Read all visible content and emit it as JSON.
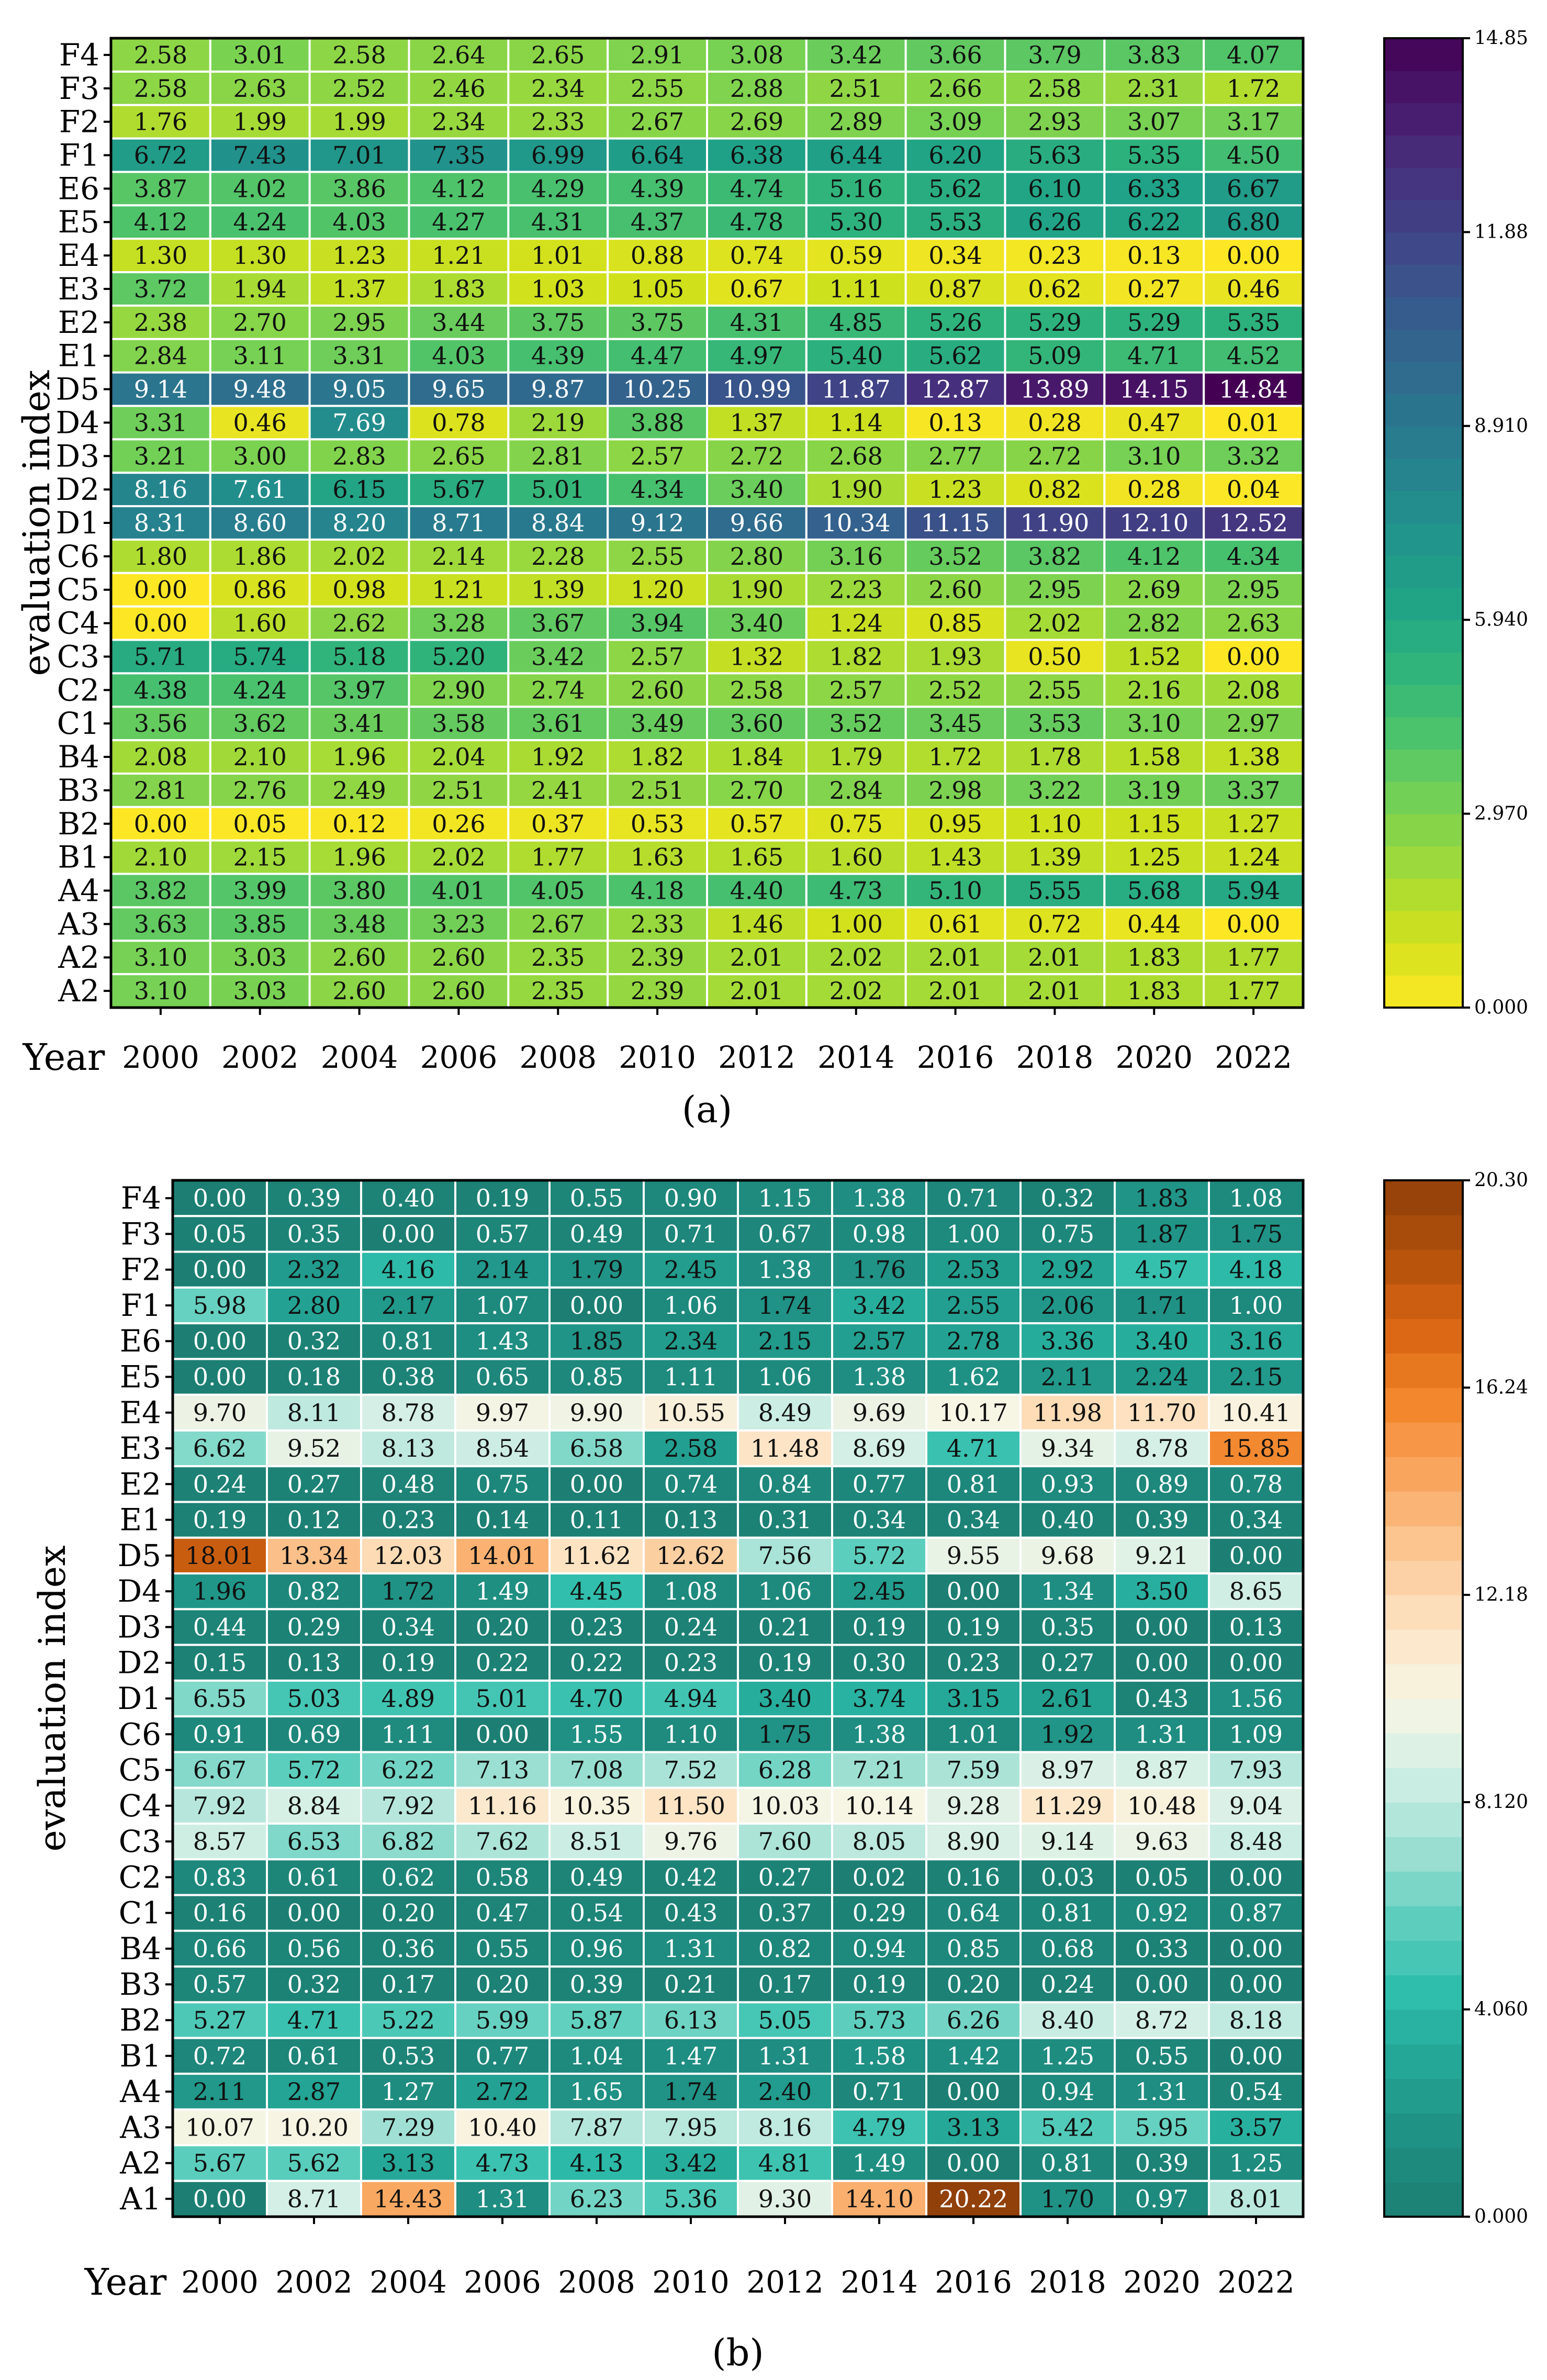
{
  "chart_data": [
    {
      "type": "heatmap",
      "panel_label": "(a)",
      "xlabel": "Year",
      "ylabel": "evaluation index",
      "columns": [
        "2000",
        "2002",
        "2004",
        "2006",
        "2008",
        "2010",
        "2012",
        "2014",
        "2016",
        "2018",
        "2020",
        "2022"
      ],
      "rows": [
        "F4",
        "F3",
        "F2",
        "F1",
        "E6",
        "E5",
        "E4",
        "E3",
        "E2",
        "E1",
        "D5",
        "D4",
        "D3",
        "D2",
        "D1",
        "C6",
        "C5",
        "C4",
        "C3",
        "C2",
        "C1",
        "B4",
        "B3",
        "B2",
        "B1",
        "A4",
        "A3",
        "A2",
        "A2"
      ],
      "values": [
        [
          2.58,
          3.01,
          2.58,
          2.64,
          2.65,
          2.91,
          3.08,
          3.42,
          3.66,
          3.79,
          3.83,
          4.07
        ],
        [
          2.58,
          2.63,
          2.52,
          2.46,
          2.34,
          2.55,
          2.88,
          2.51,
          2.66,
          2.58,
          2.31,
          1.72
        ],
        [
          1.76,
          1.99,
          1.99,
          2.34,
          2.33,
          2.67,
          2.69,
          2.89,
          3.09,
          2.93,
          3.07,
          3.17
        ],
        [
          6.72,
          7.43,
          7.01,
          7.35,
          6.99,
          6.64,
          6.38,
          6.44,
          6.2,
          5.63,
          5.35,
          4.5
        ],
        [
          3.87,
          4.02,
          3.86,
          4.12,
          4.29,
          4.39,
          4.74,
          5.16,
          5.62,
          6.1,
          6.33,
          6.67
        ],
        [
          4.12,
          4.24,
          4.03,
          4.27,
          4.31,
          4.37,
          4.78,
          5.3,
          5.53,
          6.26,
          6.22,
          6.8
        ],
        [
          1.3,
          1.3,
          1.23,
          1.21,
          1.01,
          0.88,
          0.74,
          0.59,
          0.34,
          0.23,
          0.13,
          0.0
        ],
        [
          3.72,
          1.94,
          1.37,
          1.83,
          1.03,
          1.05,
          0.67,
          1.11,
          0.87,
          0.62,
          0.27,
          0.46
        ],
        [
          2.38,
          2.7,
          2.95,
          3.44,
          3.75,
          3.75,
          4.31,
          4.85,
          5.26,
          5.29,
          5.29,
          5.35
        ],
        [
          2.84,
          3.11,
          3.31,
          4.03,
          4.39,
          4.47,
          4.97,
          5.4,
          5.62,
          5.09,
          4.71,
          4.52
        ],
        [
          9.14,
          9.48,
          9.05,
          9.65,
          9.87,
          10.25,
          10.99,
          11.87,
          12.87,
          13.89,
          14.15,
          14.84
        ],
        [
          3.31,
          0.46,
          7.69,
          0.78,
          2.19,
          3.88,
          1.37,
          1.14,
          0.13,
          0.28,
          0.47,
          0.01
        ],
        [
          3.21,
          3.0,
          2.83,
          2.65,
          2.81,
          2.57,
          2.72,
          2.68,
          2.77,
          2.72,
          3.1,
          3.32
        ],
        [
          8.16,
          7.61,
          6.15,
          5.67,
          5.01,
          4.34,
          3.4,
          1.9,
          1.23,
          0.82,
          0.28,
          0.04
        ],
        [
          8.31,
          8.6,
          8.2,
          8.71,
          8.84,
          9.12,
          9.66,
          10.34,
          11.15,
          11.9,
          12.1,
          12.52
        ],
        [
          1.8,
          1.86,
          2.02,
          2.14,
          2.28,
          2.55,
          2.8,
          3.16,
          3.52,
          3.82,
          4.12,
          4.34
        ],
        [
          0.0,
          0.86,
          0.98,
          1.21,
          1.39,
          1.2,
          1.9,
          2.23,
          2.6,
          2.95,
          2.69,
          2.95
        ],
        [
          0.0,
          1.6,
          2.62,
          3.28,
          3.67,
          3.94,
          3.4,
          1.24,
          0.85,
          2.02,
          2.82,
          2.63
        ],
        [
          5.71,
          5.74,
          5.18,
          5.2,
          3.42,
          2.57,
          1.32,
          1.82,
          1.93,
          0.5,
          1.52,
          0.0
        ],
        [
          4.38,
          4.24,
          3.97,
          2.9,
          2.74,
          2.6,
          2.58,
          2.57,
          2.52,
          2.55,
          2.16,
          2.08
        ],
        [
          3.56,
          3.62,
          3.41,
          3.58,
          3.61,
          3.49,
          3.6,
          3.52,
          3.45,
          3.53,
          3.1,
          2.97
        ],
        [
          2.08,
          2.1,
          1.96,
          2.04,
          1.92,
          1.82,
          1.84,
          1.79,
          1.72,
          1.78,
          1.58,
          1.38
        ],
        [
          2.81,
          2.76,
          2.49,
          2.51,
          2.41,
          2.51,
          2.7,
          2.84,
          2.98,
          3.22,
          3.19,
          3.37
        ],
        [
          0.0,
          0.05,
          0.12,
          0.26,
          0.37,
          0.53,
          0.57,
          0.75,
          0.95,
          1.1,
          1.15,
          1.27
        ],
        [
          2.1,
          2.15,
          1.96,
          2.02,
          1.77,
          1.63,
          1.65,
          1.6,
          1.43,
          1.39,
          1.25,
          1.24
        ],
        [
          3.82,
          3.99,
          3.8,
          4.01,
          4.05,
          4.18,
          4.4,
          4.73,
          5.1,
          5.55,
          5.68,
          5.94
        ],
        [
          3.63,
          3.85,
          3.48,
          3.23,
          2.67,
          2.33,
          1.46,
          1.0,
          0.61,
          0.72,
          0.44,
          0.0
        ],
        [
          3.1,
          3.03,
          2.6,
          2.6,
          2.35,
          2.39,
          2.01,
          2.02,
          2.01,
          2.01,
          1.83,
          1.77
        ],
        [
          3.1,
          3.03,
          2.6,
          2.6,
          2.35,
          2.39,
          2.01,
          2.02,
          2.01,
          2.01,
          1.83,
          1.77
        ]
      ],
      "colorbar": {
        "min": 0.0,
        "max": 14.85,
        "tick_labels": [
          "14.85",
          "11.88",
          "8.910",
          "5.940",
          "2.970",
          "0.000"
        ],
        "tick_values": [
          14.85,
          11.88,
          8.91,
          5.94,
          2.97,
          0.0
        ],
        "stops": [
          "#fde725",
          "#d0e11c",
          "#a0da39",
          "#73d056",
          "#4ac16d",
          "#2db27d",
          "#1fa187",
          "#21918c",
          "#277f8e",
          "#2e6e8e",
          "#365c8d",
          "#3f4788",
          "#46327e",
          "#481b6d",
          "#440154"
        ]
      }
    },
    {
      "type": "heatmap",
      "panel_label": "(b)",
      "xlabel": "Year",
      "ylabel": "evaluation index",
      "columns": [
        "2000",
        "2002",
        "2004",
        "2006",
        "2008",
        "2010",
        "2012",
        "2014",
        "2016",
        "2018",
        "2020",
        "2022"
      ],
      "rows": [
        "F4",
        "F3",
        "F2",
        "F1",
        "E6",
        "E5",
        "E4",
        "E3",
        "E2",
        "E1",
        "D5",
        "D4",
        "D3",
        "D2",
        "D1",
        "C6",
        "C5",
        "C4",
        "C3",
        "C2",
        "C1",
        "B4",
        "B3",
        "B2",
        "B1",
        "A4",
        "A3",
        "A2",
        "A1"
      ],
      "values": [
        [
          0.0,
          0.39,
          0.4,
          0.19,
          0.55,
          0.9,
          1.15,
          1.38,
          0.71,
          0.32,
          1.83,
          1.08
        ],
        [
          0.05,
          0.35,
          0.0,
          0.57,
          0.49,
          0.71,
          0.67,
          0.98,
          1.0,
          0.75,
          1.87,
          1.75
        ],
        [
          0.0,
          2.32,
          4.16,
          2.14,
          1.79,
          2.45,
          1.38,
          1.76,
          2.53,
          2.92,
          4.57,
          4.18
        ],
        [
          5.98,
          2.8,
          2.17,
          1.07,
          0.0,
          1.06,
          1.74,
          3.42,
          2.55,
          2.06,
          1.71,
          1.0
        ],
        [
          0.0,
          0.32,
          0.81,
          1.43,
          1.85,
          2.34,
          2.15,
          2.57,
          2.78,
          3.36,
          3.4,
          3.16
        ],
        [
          0.0,
          0.18,
          0.38,
          0.65,
          0.85,
          1.11,
          1.06,
          1.38,
          1.62,
          2.11,
          2.24,
          2.15
        ],
        [
          9.7,
          8.11,
          8.78,
          9.97,
          9.9,
          10.55,
          8.49,
          9.69,
          10.17,
          11.98,
          11.7,
          10.41
        ],
        [
          6.62,
          9.52,
          8.13,
          8.54,
          6.58,
          2.58,
          11.48,
          8.69,
          4.71,
          9.34,
          8.78,
          15.85
        ],
        [
          0.24,
          0.27,
          0.48,
          0.75,
          0.0,
          0.74,
          0.84,
          0.77,
          0.81,
          0.93,
          0.89,
          0.78
        ],
        [
          0.19,
          0.12,
          0.23,
          0.14,
          0.11,
          0.13,
          0.31,
          0.34,
          0.34,
          0.4,
          0.39,
          0.34
        ],
        [
          18.01,
          13.34,
          12.03,
          14.01,
          11.62,
          12.62,
          7.56,
          5.72,
          9.55,
          9.68,
          9.21,
          0.0
        ],
        [
          1.96,
          0.82,
          1.72,
          1.49,
          4.45,
          1.08,
          1.06,
          2.45,
          0.0,
          1.34,
          3.5,
          8.65
        ],
        [
          0.44,
          0.29,
          0.34,
          0.2,
          0.23,
          0.24,
          0.21,
          0.19,
          0.19,
          0.35,
          0.0,
          0.13
        ],
        [
          0.15,
          0.13,
          0.19,
          0.22,
          0.22,
          0.23,
          0.19,
          0.3,
          0.23,
          0.27,
          0.0,
          0.0
        ],
        [
          6.55,
          5.03,
          4.89,
          5.01,
          4.7,
          4.94,
          3.4,
          3.74,
          3.15,
          2.61,
          0.43,
          1.56
        ],
        [
          0.91,
          0.69,
          1.11,
          0.0,
          1.55,
          1.1,
          1.75,
          1.38,
          1.01,
          1.92,
          1.31,
          1.09
        ],
        [
          6.67,
          5.72,
          6.22,
          7.13,
          7.08,
          7.52,
          6.28,
          7.21,
          7.59,
          8.97,
          8.87,
          7.93
        ],
        [
          7.92,
          8.84,
          7.92,
          11.16,
          10.35,
          11.5,
          10.03,
          10.14,
          9.28,
          11.29,
          10.48,
          9.04
        ],
        [
          8.57,
          6.53,
          6.82,
          7.62,
          8.51,
          9.76,
          7.6,
          8.05,
          8.9,
          9.14,
          9.63,
          8.48
        ],
        [
          0.83,
          0.61,
          0.62,
          0.58,
          0.49,
          0.42,
          0.27,
          0.02,
          0.16,
          0.03,
          0.05,
          0.0
        ],
        [
          0.16,
          0.0,
          0.2,
          0.47,
          0.54,
          0.43,
          0.37,
          0.29,
          0.64,
          0.81,
          0.92,
          0.87
        ],
        [
          0.66,
          0.56,
          0.36,
          0.55,
          0.96,
          1.31,
          0.82,
          0.94,
          0.85,
          0.68,
          0.33,
          0.0
        ],
        [
          0.57,
          0.32,
          0.17,
          0.2,
          0.39,
          0.21,
          0.17,
          0.19,
          0.2,
          0.24,
          0.0,
          0.0
        ],
        [
          5.27,
          4.71,
          5.22,
          5.99,
          5.87,
          6.13,
          5.05,
          5.73,
          6.26,
          8.4,
          8.72,
          8.18
        ],
        [
          0.72,
          0.61,
          0.53,
          0.77,
          1.04,
          1.47,
          1.31,
          1.58,
          1.42,
          1.25,
          0.55,
          0.0
        ],
        [
          2.11,
          2.87,
          1.27,
          2.72,
          1.65,
          1.74,
          2.4,
          0.71,
          0.0,
          0.94,
          1.31,
          0.54
        ],
        [
          10.07,
          10.2,
          7.29,
          10.4,
          7.87,
          7.95,
          8.16,
          4.79,
          3.13,
          5.42,
          5.95,
          3.57
        ],
        [
          5.67,
          5.62,
          3.13,
          4.73,
          4.13,
          3.42,
          4.81,
          1.49,
          0.0,
          0.81,
          0.39,
          1.25
        ],
        [
          0.0,
          8.71,
          14.43,
          1.31,
          6.23,
          5.36,
          9.3,
          14.1,
          20.22,
          1.7,
          0.97,
          8.01
        ]
      ],
      "colorbar": {
        "min": 0.0,
        "max": 20.3,
        "tick_labels": [
          "20.30",
          "16.24",
          "12.18",
          "8.120",
          "4.060",
          "0.000"
        ],
        "tick_values": [
          20.3,
          16.24,
          12.18,
          8.12,
          4.06,
          0.0
        ],
        "stops": [
          "#1d7f73",
          "#1f8e82",
          "#23a494",
          "#2ebdab",
          "#5fcfbe",
          "#9fe0d3",
          "#d3efe6",
          "#f7f5e4",
          "#fde3c3",
          "#fcc793",
          "#f9a660",
          "#f2862b",
          "#d96512",
          "#b3510c",
          "#8f3f0a"
        ]
      }
    }
  ]
}
